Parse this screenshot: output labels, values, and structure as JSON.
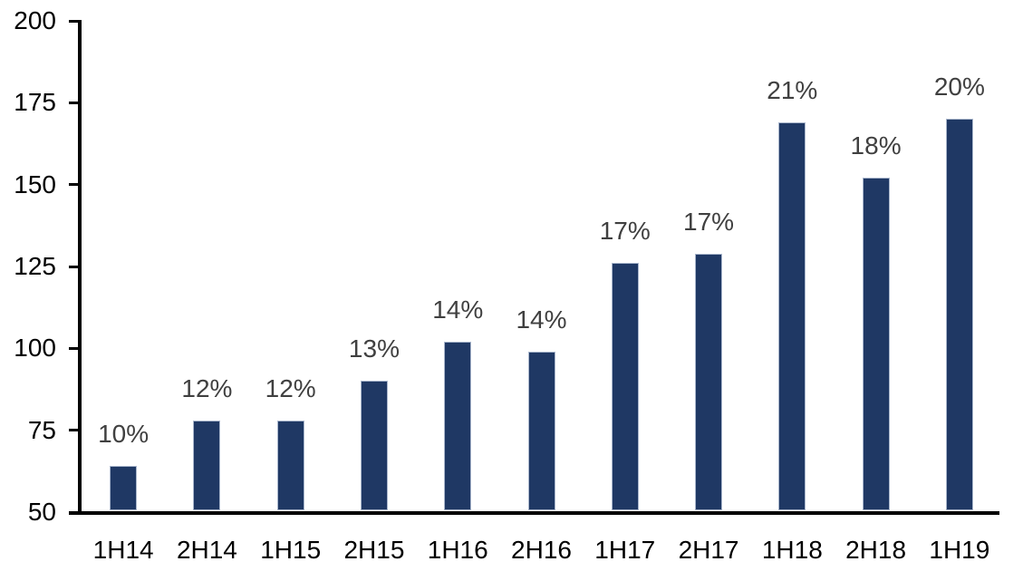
{
  "chart_data": {
    "type": "bar",
    "categories": [
      "1H14",
      "2H14",
      "1H15",
      "2H15",
      "1H16",
      "2H16",
      "1H17",
      "2H17",
      "1H18",
      "2H18",
      "1H19"
    ],
    "values": [
      64,
      78,
      78,
      90,
      102,
      99,
      126,
      129,
      169,
      152,
      170
    ],
    "bar_labels": [
      "10%",
      "12%",
      "12%",
      "13%",
      "14%",
      "14%",
      "17%",
      "17%",
      "21%",
      "18%",
      "20%"
    ],
    "title": "",
    "xlabel": "",
    "ylabel": "",
    "ylim": [
      50,
      200
    ],
    "y_ticks": [
      50,
      75,
      100,
      125,
      150,
      175,
      200
    ],
    "grid": false,
    "legend_position": "none",
    "colors": {
      "bar_fill": "#1F3864",
      "bar_border": "#A9B6CC",
      "data_label": "#404040",
      "axis_text": "#000000",
      "axis_line": "#000000"
    }
  }
}
